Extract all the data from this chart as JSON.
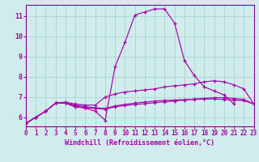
{
  "xlabel": "Windchill (Refroidissement éolien,°C)",
  "bg_color": "#d0ecec",
  "grid_color": "#a8d4d4",
  "line_color": "#aa00aa",
  "spine_color": "#880088",
  "xlim": [
    0,
    23
  ],
  "ylim": [
    5.55,
    11.55
  ],
  "xticks": [
    0,
    1,
    2,
    3,
    4,
    5,
    6,
    7,
    8,
    9,
    10,
    11,
    12,
    13,
    14,
    15,
    16,
    17,
    18,
    19,
    20,
    21,
    22,
    23
  ],
  "yticks": [
    6,
    7,
    8,
    9,
    10,
    11
  ],
  "series": [
    {
      "x": [
        0,
        1,
        2,
        3,
        4,
        5,
        6,
        7,
        8,
        9,
        10,
        11,
        12,
        13,
        14,
        15,
        16,
        17,
        18,
        19,
        20,
        21
      ],
      "y": [
        5.7,
        6.0,
        6.3,
        6.7,
        6.7,
        6.55,
        6.45,
        6.3,
        5.85,
        8.5,
        9.7,
        11.05,
        11.2,
        11.35,
        11.35,
        10.65,
        8.8,
        8.05,
        7.5,
        7.3,
        7.1,
        6.65
      ]
    },
    {
      "x": [
        0,
        1,
        2,
        3,
        4,
        5,
        6,
        7,
        8,
        9,
        10,
        11,
        12,
        13,
        14,
        15,
        16,
        17,
        18,
        19,
        20,
        21,
        22,
        23
      ],
      "y": [
        5.7,
        6.0,
        6.3,
        6.7,
        6.75,
        6.65,
        6.6,
        6.6,
        7.0,
        7.15,
        7.25,
        7.3,
        7.35,
        7.4,
        7.5,
        7.55,
        7.6,
        7.65,
        7.75,
        7.8,
        7.75,
        7.6,
        7.4,
        6.65
      ]
    },
    {
      "x": [
        0,
        1,
        2,
        3,
        4,
        5,
        6,
        7,
        8,
        9,
        10,
        11,
        12,
        13,
        14,
        15,
        16,
        17,
        18,
        19,
        20,
        21,
        22,
        23
      ],
      "y": [
        5.7,
        6.0,
        6.3,
        6.7,
        6.7,
        6.5,
        6.47,
        6.44,
        6.4,
        6.52,
        6.58,
        6.63,
        6.67,
        6.72,
        6.76,
        6.8,
        6.85,
        6.9,
        6.93,
        6.97,
        6.97,
        6.93,
        6.88,
        6.65
      ]
    },
    {
      "x": [
        0,
        1,
        2,
        3,
        4,
        5,
        6,
        7,
        8,
        9,
        10,
        11,
        12,
        13,
        14,
        15,
        16,
        17,
        18,
        19,
        20,
        21,
        22,
        23
      ],
      "y": [
        5.7,
        6.0,
        6.3,
        6.7,
        6.7,
        6.6,
        6.52,
        6.47,
        6.43,
        6.56,
        6.63,
        6.7,
        6.75,
        6.8,
        6.83,
        6.85,
        6.87,
        6.88,
        6.9,
        6.9,
        6.88,
        6.85,
        6.82,
        6.65
      ]
    }
  ]
}
